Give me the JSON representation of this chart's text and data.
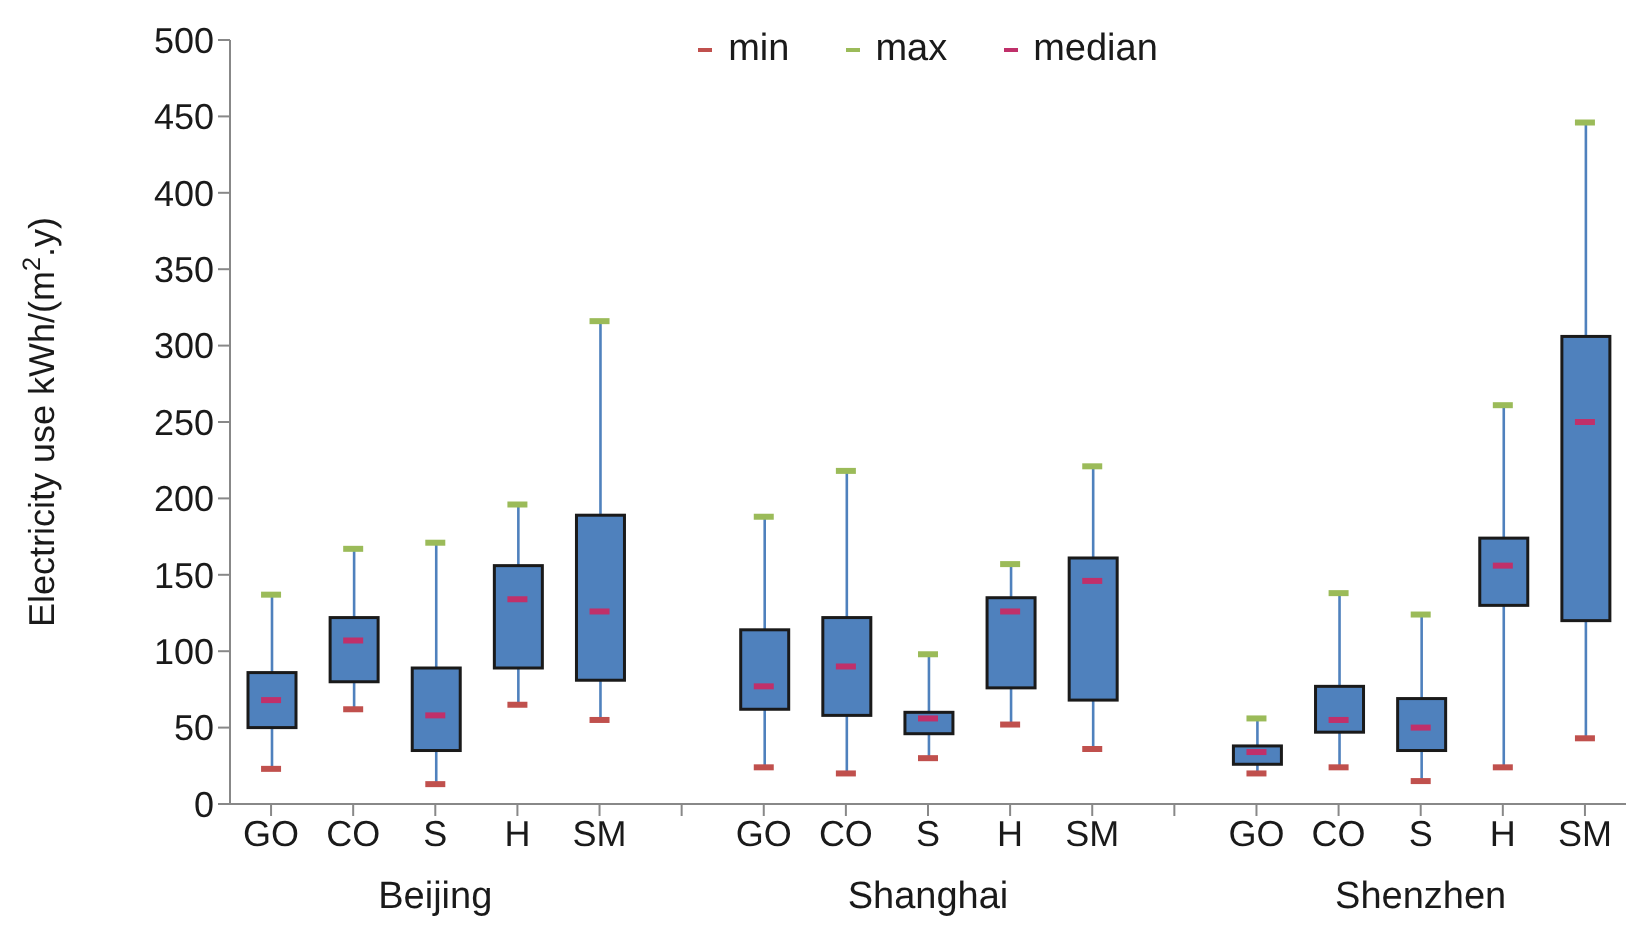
{
  "chart_data": {
    "type": "box",
    "ylabel": "Electricity use kWh/(m$^{2}$.y)",
    "categories": [
      "GO",
      "CO",
      "S",
      "H",
      "SM",
      null,
      "GO",
      "CO",
      "S",
      "H",
      "SM",
      null,
      "GO",
      "CO",
      "S",
      "H",
      "SM"
    ],
    "series": [
      {
        "color": "#4f81bd",
        "boxes": [
          {
            "low": 23,
            "q1": 50,
            "q3": 86,
            "high": 137
          },
          {
            "low": 62,
            "q1": 80,
            "q3": 122,
            "high": 167
          },
          {
            "low": 13,
            "q1": 35,
            "q3": 89,
            "high": 171
          },
          {
            "low": 65,
            "q1": 89,
            "q3": 156,
            "high": 196
          },
          {
            "low": 55,
            "q1": 81,
            "q3": 189,
            "high": 316
          },
          null,
          {
            "low": 24,
            "q1": 62,
            "q3": 114,
            "high": 188
          },
          {
            "low": 20,
            "q1": 58,
            "q3": 122,
            "high": 218
          },
          {
            "low": 30,
            "q1": 46,
            "q3": 60,
            "high": 98
          },
          {
            "low": 52,
            "q1": 76,
            "q3": 135,
            "high": 157
          },
          {
            "low": 36,
            "q1": 68,
            "q3": 161,
            "high": 221
          },
          null,
          {
            "low": 20,
            "q1": 26,
            "q3": 38,
            "high": 56
          },
          {
            "low": 24,
            "q1": 47,
            "q3": 77,
            "high": 138
          },
          {
            "low": 15,
            "q1": 35,
            "q3": 69,
            "high": 124
          },
          {
            "low": 24,
            "q1": 130,
            "q3": 174,
            "high": 261
          },
          {
            "low": 43,
            "q1": 120,
            "q3": 306,
            "high": 446
          }
        ]
      },
      {
        "name": "min",
        "type": "scatter",
        "color": "#c0504d",
        "values": [
          23,
          62,
          13,
          65,
          55,
          null,
          24,
          20,
          30,
          52,
          36,
          null,
          20,
          24,
          15,
          24,
          43
        ]
      },
      {
        "name": "max",
        "type": "scatter",
        "color": "#9bbb59",
        "values": [
          137,
          167,
          171,
          196,
          316,
          null,
          188,
          218,
          98,
          157,
          221,
          null,
          56,
          138,
          124,
          261,
          446
        ]
      },
      {
        "name": "median",
        "type": "scatter",
        "color": "#c0306a",
        "values": [
          68,
          107,
          58,
          134,
          126,
          null,
          77,
          90,
          56,
          126,
          146,
          null,
          34,
          55,
          50,
          156,
          250
        ]
      }
    ],
    "ylim": [
      0,
      500
    ],
    "yticks": [
      0,
      50,
      100,
      150,
      200,
      250,
      300,
      350,
      400,
      450,
      500
    ],
    "legend": "top",
    "annotations": [
      "Beijing",
      "Shanghai",
      "Shenzhen"
    ]
  }
}
